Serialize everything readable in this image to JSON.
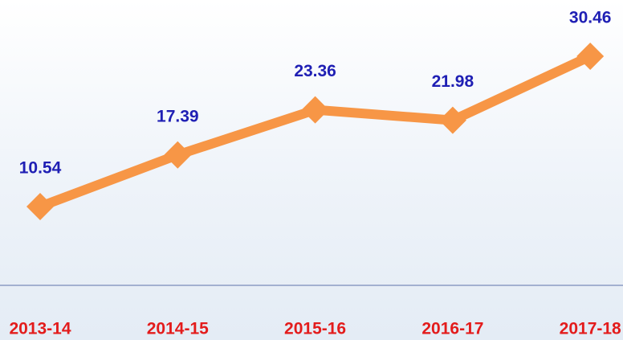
{
  "chart_data": {
    "type": "line",
    "categories": [
      "2013-14",
      "2014-15",
      "2015-16",
      "2016-17",
      "2017-18"
    ],
    "series": [
      {
        "color": "#f79646",
        "values": [
          10.54,
          17.39,
          23.36,
          21.98,
          30.46
        ]
      }
    ],
    "label_color": "#1f1fb4",
    "category_color": "#e31c1c"
  }
}
